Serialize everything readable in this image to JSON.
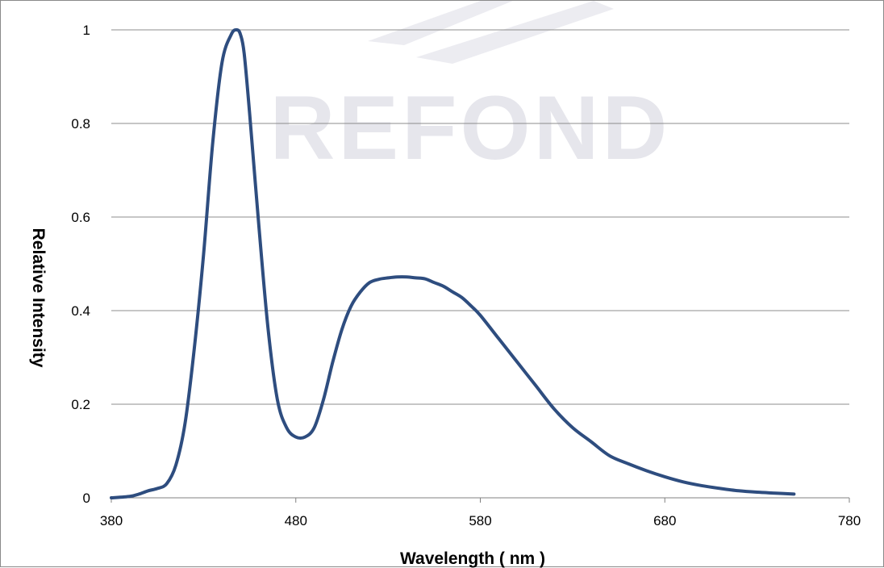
{
  "chart_data": {
    "type": "line",
    "xlabel": "Wavelength ( nm )",
    "ylabel": "Relative  Intensity",
    "xlim": [
      380,
      780
    ],
    "ylim": [
      0,
      1
    ],
    "x_ticks": [
      "380",
      "480",
      "580",
      "680",
      "780"
    ],
    "y_ticks": [
      "0",
      "0.2",
      "0.4",
      "0.6",
      "0.8",
      "1"
    ],
    "grid": "horizontal",
    "legend": "none",
    "line_color": "#2e4d7f",
    "series": [
      {
        "x": [
          380,
          390,
          395,
          400,
          405,
          410,
          415,
          420,
          425,
          430,
          435,
          440,
          445,
          448,
          450,
          452,
          455,
          460,
          465,
          470,
          475,
          480,
          485,
          490,
          495,
          500,
          505,
          510,
          515,
          520,
          525,
          530,
          535,
          540,
          545,
          550,
          555,
          560,
          565,
          570,
          575,
          580,
          590,
          600,
          610,
          620,
          630,
          640,
          650,
          660,
          670,
          680,
          690,
          700,
          710,
          720,
          730,
          740,
          750
        ],
        "y": [
          0.0,
          0.003,
          0.008,
          0.015,
          0.02,
          0.03,
          0.07,
          0.16,
          0.32,
          0.52,
          0.76,
          0.93,
          0.99,
          1.0,
          0.99,
          0.95,
          0.82,
          0.58,
          0.36,
          0.21,
          0.15,
          0.13,
          0.13,
          0.15,
          0.21,
          0.29,
          0.36,
          0.41,
          0.44,
          0.46,
          0.467,
          0.47,
          0.472,
          0.472,
          0.47,
          0.468,
          0.46,
          0.452,
          0.44,
          0.428,
          0.41,
          0.39,
          0.34,
          0.29,
          0.24,
          0.19,
          0.15,
          0.12,
          0.09,
          0.073,
          0.058,
          0.045,
          0.034,
          0.026,
          0.02,
          0.015,
          0.012,
          0.01,
          0.008
        ]
      }
    ]
  },
  "watermark": {
    "text": "REFOND",
    "color": "#e6e6ec"
  }
}
